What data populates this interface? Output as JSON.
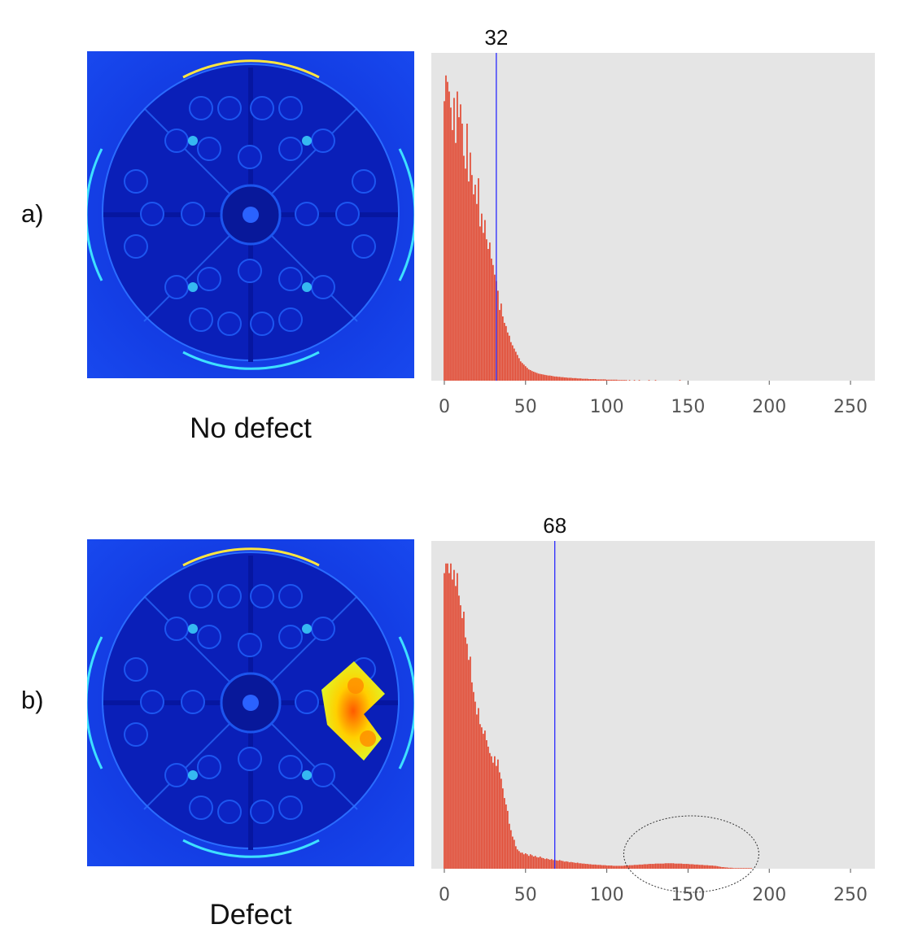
{
  "rows": [
    {
      "label": "a)",
      "caption": "No defect",
      "defect": false,
      "threshold_label": "32"
    },
    {
      "label": "b)",
      "caption": "Defect",
      "defect": true,
      "threshold_label": "68"
    }
  ],
  "colors": {
    "bar": "#e24a33",
    "plot_bg": "#e5e5e5",
    "threshold_line": "#1a1aff",
    "tick_text": "#555555",
    "heatmap_low": "#0a25cc",
    "heatmap_mid": "#00c8ff",
    "heatmap_high": "#ffee00"
  },
  "chart_data": [
    {
      "type": "bar",
      "xlim": [
        -8,
        265
      ],
      "ylim": [
        0,
        1
      ],
      "xticks": [
        0,
        50,
        100,
        150,
        200,
        250
      ],
      "grid": false,
      "threshold": 32,
      "values": [
        0.87,
        0.95,
        0.93,
        0.9,
        0.85,
        0.78,
        0.88,
        0.74,
        0.9,
        0.82,
        0.86,
        0.8,
        0.7,
        0.66,
        0.8,
        0.62,
        0.71,
        0.64,
        0.58,
        0.61,
        0.55,
        0.63,
        0.48,
        0.52,
        0.46,
        0.5,
        0.44,
        0.41,
        0.43,
        0.38,
        0.36,
        0.33,
        0.31,
        0.28,
        0.22,
        0.24,
        0.2,
        0.18,
        0.17,
        0.15,
        0.14,
        0.12,
        0.11,
        0.1,
        0.09,
        0.08,
        0.07,
        0.06,
        0.055,
        0.05,
        0.045,
        0.04,
        0.035,
        0.033,
        0.03,
        0.028,
        0.026,
        0.024,
        0.022,
        0.021,
        0.02,
        0.019,
        0.018,
        0.017,
        0.016,
        0.016,
        0.015,
        0.014,
        0.013,
        0.013,
        0.012,
        0.012,
        0.011,
        0.011,
        0.01,
        0.01,
        0.009,
        0.009,
        0.009,
        0.008,
        0.008,
        0.008,
        0.007,
        0.007,
        0.007,
        0.006,
        0.006,
        0.006,
        0.006,
        0.005,
        0.005,
        0.005,
        0.005,
        0.005,
        0.004,
        0.004,
        0.004,
        0.004,
        0.004,
        0.004,
        0.003,
        0.003,
        0.003,
        0.003,
        0.003,
        0.003,
        0.003,
        0.002,
        0.002,
        0.002,
        0.002,
        0.002,
        0.002,
        0,
        0.002,
        0,
        0,
        0.002,
        0,
        0,
        0.002,
        0,
        0,
        0,
        0,
        0,
        0.002,
        0,
        0,
        0,
        0.002,
        0,
        0,
        0,
        0,
        0,
        0,
        0,
        0,
        0,
        0,
        0,
        0,
        0,
        0,
        0.002
      ]
    },
    {
      "type": "bar",
      "xlim": [
        -8,
        265
      ],
      "ylim": [
        0,
        1
      ],
      "xticks": [
        0,
        50,
        100,
        150,
        200,
        250
      ],
      "grid": false,
      "threshold": 68,
      "annotation": "ellipse",
      "values": [
        0.92,
        0.95,
        0.95,
        0.92,
        0.95,
        0.9,
        0.93,
        0.88,
        0.92,
        0.85,
        0.82,
        0.78,
        0.8,
        0.72,
        0.7,
        0.65,
        0.66,
        0.58,
        0.55,
        0.52,
        0.48,
        0.5,
        0.45,
        0.44,
        0.42,
        0.43,
        0.4,
        0.38,
        0.36,
        0.35,
        0.33,
        0.35,
        0.32,
        0.34,
        0.3,
        0.28,
        0.25,
        0.22,
        0.2,
        0.18,
        0.14,
        0.12,
        0.1,
        0.09,
        0.07,
        0.06,
        0.055,
        0.05,
        0.05,
        0.045,
        0.048,
        0.045,
        0.04,
        0.045,
        0.042,
        0.038,
        0.04,
        0.036,
        0.035,
        0.038,
        0.034,
        0.033,
        0.03,
        0.032,
        0.03,
        0.028,
        0.03,
        0.027,
        0.028,
        0.026,
        0.025,
        0.027,
        0.025,
        0.024,
        0.022,
        0.023,
        0.022,
        0.02,
        0.021,
        0.02,
        0.019,
        0.018,
        0.019,
        0.017,
        0.017,
        0.016,
        0.016,
        0.015,
        0.015,
        0.014,
        0.014,
        0.013,
        0.013,
        0.013,
        0.012,
        0.012,
        0.012,
        0.011,
        0.011,
        0.011,
        0.01,
        0.01,
        0.01,
        0.01,
        0.009,
        0.009,
        0.009,
        0.009,
        0.009,
        0.009,
        0.009,
        0.01,
        0.01,
        0.01,
        0.011,
        0.011,
        0.011,
        0.012,
        0.012,
        0.012,
        0.013,
        0.013,
        0.013,
        0.014,
        0.014,
        0.014,
        0.015,
        0.015,
        0.015,
        0.015,
        0.016,
        0.016,
        0.016,
        0.016,
        0.016,
        0.016,
        0.017,
        0.017,
        0.017,
        0.017,
        0.017,
        0.017,
        0.016,
        0.016,
        0.016,
        0.016,
        0.016,
        0.015,
        0.015,
        0.015,
        0.015,
        0.014,
        0.014,
        0.014,
        0.013,
        0.013,
        0.013,
        0.012,
        0.012,
        0.012,
        0.011,
        0.011,
        0.011,
        0.01,
        0.01,
        0.01,
        0.009,
        0.009,
        0.008,
        0.007,
        0.006,
        0.005,
        0.005,
        0.004,
        0.004,
        0.003,
        0.003,
        0.003,
        0.002,
        0.002,
        0.002,
        0.002,
        0.002,
        0.002,
        0.002,
        0.002,
        0.002,
        0.002,
        0.002,
        0.002
      ]
    }
  ]
}
